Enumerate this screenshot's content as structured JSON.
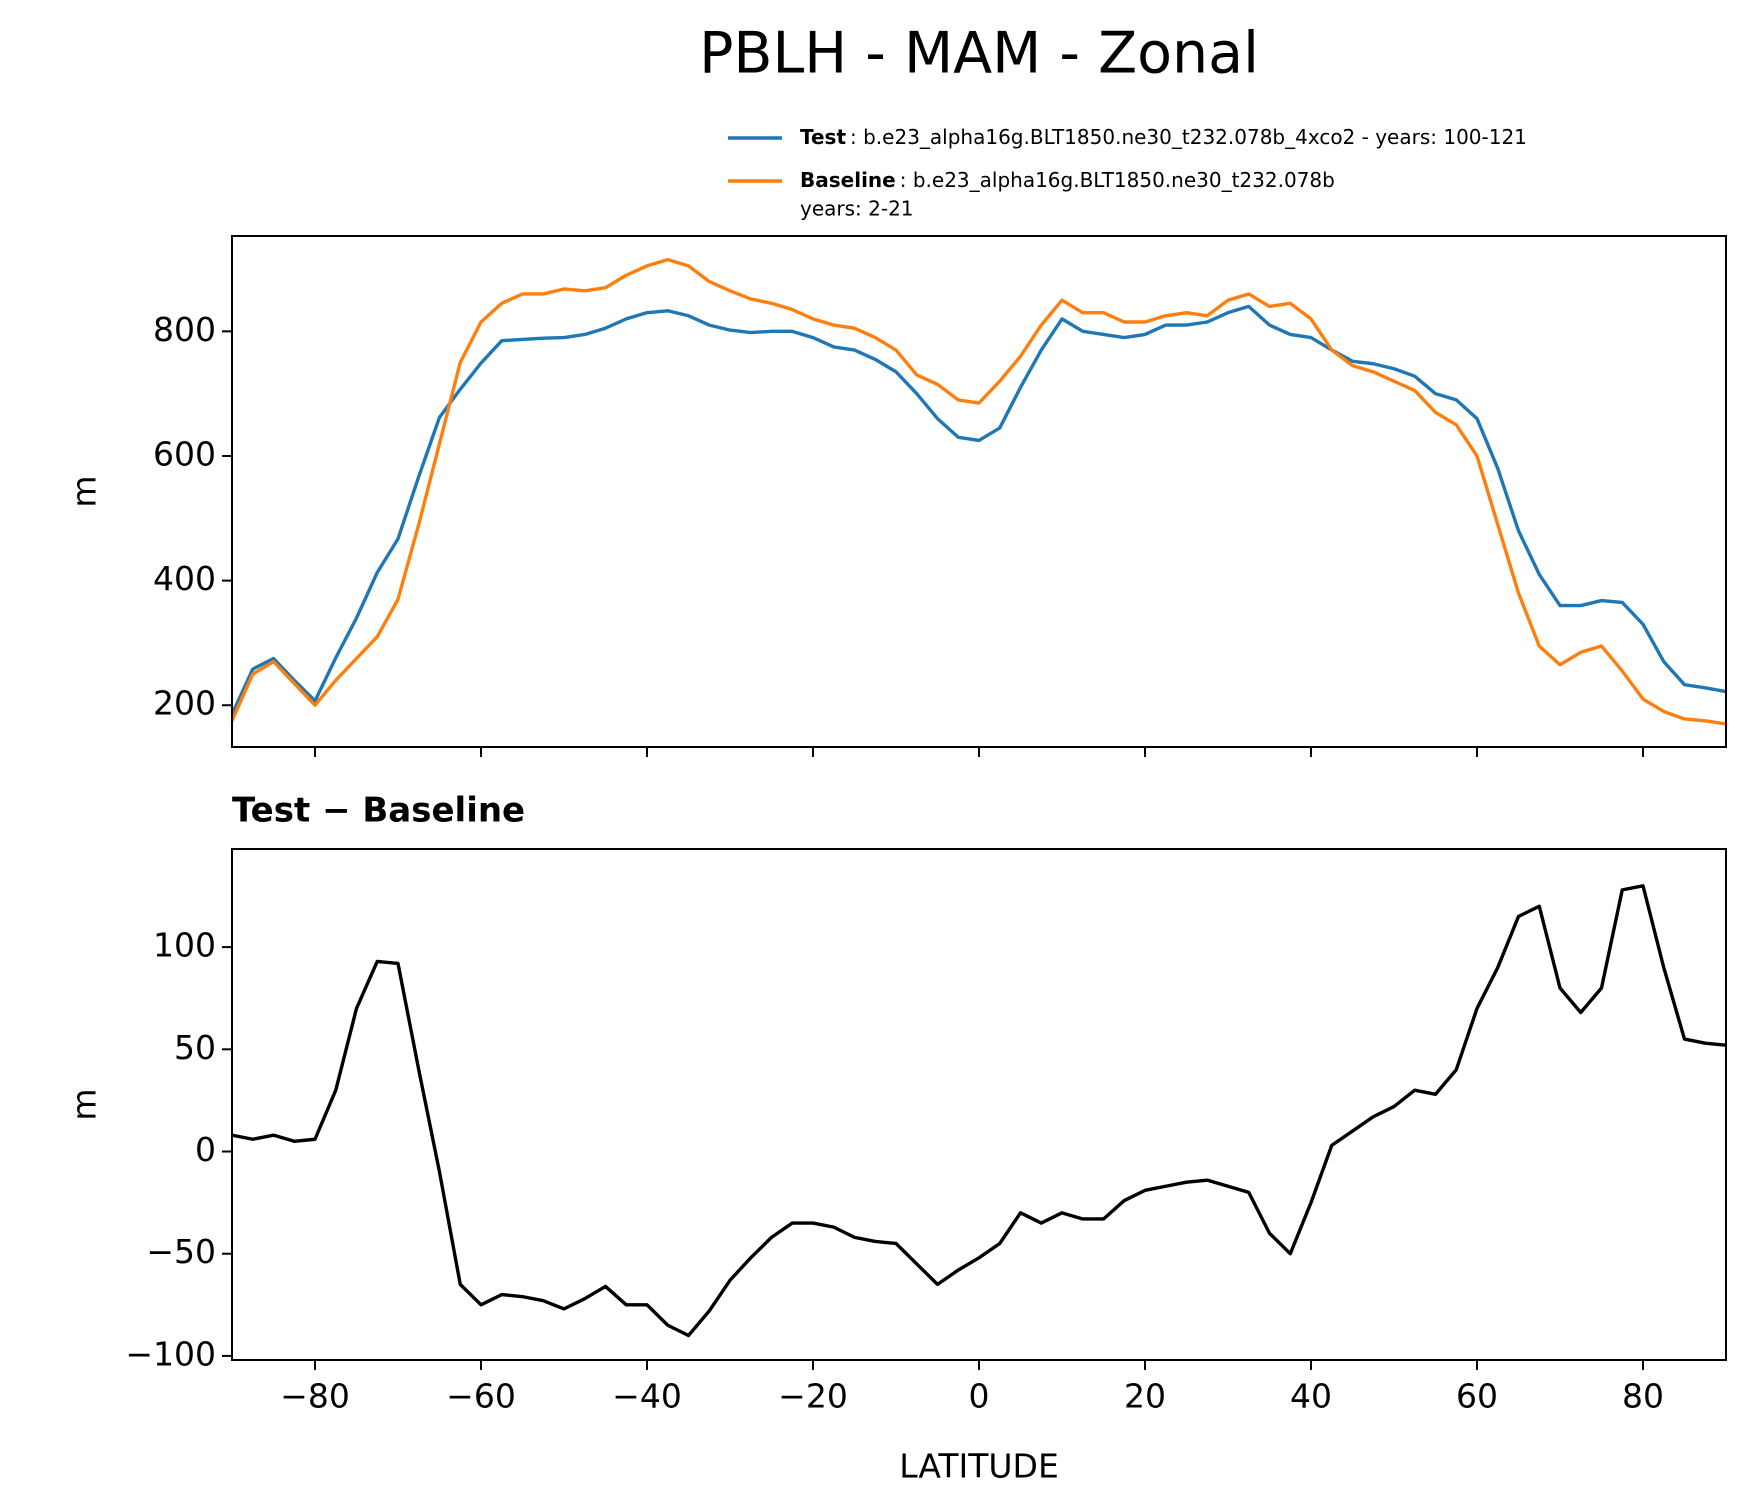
{
  "title": "PBLH - MAM - Zonal",
  "chart_data": [
    {
      "type": "line",
      "ylabel": "m",
      "x": [
        -90,
        -87.5,
        -85,
        -82.5,
        -80,
        -77.5,
        -75,
        -72.5,
        -70,
        -67.5,
        -65,
        -62.5,
        -60,
        -57.5,
        -55,
        -52.5,
        -50,
        -47.5,
        -45,
        -42.5,
        -40,
        -37.5,
        -35,
        -32.5,
        -30,
        -27.5,
        -25,
        -22.5,
        -20,
        -17.5,
        -15,
        -12.5,
        -10,
        -7.5,
        -5,
        -2.5,
        0,
        2.5,
        5,
        7.5,
        10,
        12.5,
        15,
        17.5,
        20,
        22.5,
        25,
        27.5,
        30,
        32.5,
        35,
        37.5,
        40,
        42.5,
        45,
        47.5,
        50,
        52.5,
        55,
        57.5,
        60,
        62.5,
        65,
        67.5,
        70,
        72.5,
        75,
        77.5,
        80,
        82.5,
        85,
        87.5,
        90
      ],
      "series": [
        {
          "name": "Test",
          "description": [
            ": b.e23_alpha16g.BLT1850.ne30_t232.078b_4xco2 - years: 100-121"
          ],
          "color": "#1f77b4",
          "values": [
            185,
            258,
            275,
            240,
            207,
            276,
            340,
            413,
            467,
            567,
            662,
            707,
            749,
            785,
            787,
            789,
            790,
            795,
            805,
            820,
            830,
            833,
            825,
            810,
            802,
            798,
            800,
            800,
            790,
            775,
            770,
            755,
            735,
            700,
            660,
            630,
            625,
            645,
            710,
            770,
            820,
            800,
            795,
            790,
            795,
            810,
            810,
            815,
            830,
            840,
            810,
            795,
            790,
            770,
            752,
            748,
            740,
            728,
            700,
            690,
            660,
            580,
            480,
            410,
            360,
            360,
            368,
            365,
            330,
            270,
            233,
            228,
            222
          ]
        },
        {
          "name": "Baseline",
          "description": [
            ": b.e23_alpha16g.BLT1850.ne30_t232.078b",
            "years: 2-21"
          ],
          "color": "#ff7f0e",
          "values": [
            175,
            250,
            270,
            235,
            200,
            240,
            275,
            310,
            370,
            490,
            620,
            750,
            815,
            845,
            860,
            860,
            868,
            865,
            870,
            890,
            905,
            915,
            905,
            880,
            865,
            852,
            845,
            835,
            820,
            810,
            805,
            790,
            770,
            730,
            715,
            690,
            685,
            720,
            760,
            810,
            850,
            830,
            830,
            815,
            815,
            825,
            830,
            825,
            850,
            860,
            840,
            845,
            820,
            770,
            745,
            735,
            720,
            705,
            670,
            650,
            600,
            490,
            380,
            295,
            265,
            285,
            295,
            255,
            210,
            190,
            178,
            175,
            170
          ]
        }
      ],
      "xlim": [
        -90,
        90
      ],
      "xticks": [
        -80,
        -60,
        -40,
        -20,
        0,
        20,
        40,
        60,
        80
      ],
      "xtick_labels": false,
      "ylim": [
        133,
        953
      ],
      "yticks": [
        200,
        400,
        600,
        800
      ]
    },
    {
      "type": "line",
      "title": "Test − Baseline",
      "ylabel": "m",
      "xlabel": "LATITUDE",
      "x": [
        -90,
        -87.5,
        -85,
        -82.5,
        -80,
        -77.5,
        -75,
        -72.5,
        -70,
        -67.5,
        -65,
        -62.5,
        -60,
        -57.5,
        -55,
        -52.5,
        -50,
        -47.5,
        -45,
        -42.5,
        -40,
        -37.5,
        -35,
        -32.5,
        -30,
        -27.5,
        -25,
        -22.5,
        -20,
        -17.5,
        -15,
        -12.5,
        -10,
        -7.5,
        -5,
        -2.5,
        0,
        2.5,
        5,
        7.5,
        10,
        12.5,
        15,
        17.5,
        20,
        22.5,
        25,
        27.5,
        30,
        32.5,
        35,
        37.5,
        40,
        42.5,
        45,
        47.5,
        50,
        52.5,
        55,
        57.5,
        60,
        62.5,
        65,
        67.5,
        70,
        72.5,
        75,
        77.5,
        80,
        82.5,
        85,
        87.5,
        90
      ],
      "series": [
        {
          "color": "#000000",
          "values": [
            8,
            6,
            8,
            5,
            6,
            30,
            70,
            93,
            92,
            40,
            -10,
            -65,
            -75,
            -70,
            -71,
            -73,
            -77,
            -72,
            -66,
            -75,
            -75,
            -85,
            -90,
            -78,
            -63,
            -52,
            -42,
            -35,
            -35,
            -37,
            -42,
            -44,
            -45,
            -55,
            -65,
            -58,
            -52,
            -45,
            -30,
            -35,
            -30,
            -33,
            -33,
            -24,
            -19,
            -17,
            -15,
            -14,
            -17,
            -20,
            -40,
            -50,
            -25,
            3,
            10,
            17,
            22,
            30,
            28,
            40,
            70,
            90,
            115,
            120,
            80,
            68,
            80,
            128,
            130,
            90,
            55,
            53,
            52
          ]
        }
      ],
      "xlim": [
        -90,
        90
      ],
      "xticks": [
        {
          "value": -80,
          "label": "−80"
        },
        {
          "value": -60,
          "label": "−60"
        },
        {
          "value": -40,
          "label": "−40"
        },
        {
          "value": -20,
          "label": "−20"
        },
        0,
        20,
        40,
        60,
        80
      ],
      "ylim": [
        -102,
        148
      ],
      "yticks": [
        {
          "value": -100,
          "label": "−100"
        },
        {
          "value": -50,
          "label": "−50"
        },
        0,
        50,
        100
      ]
    }
  ]
}
